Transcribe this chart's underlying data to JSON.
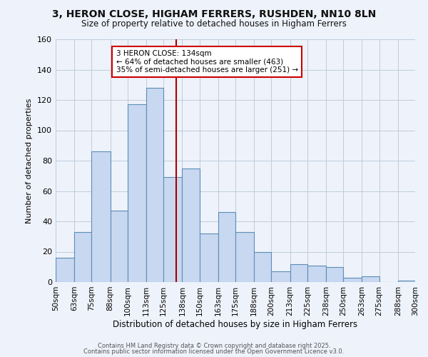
{
  "title": "3, HERON CLOSE, HIGHAM FERRERS, RUSHDEN, NN10 8LN",
  "subtitle": "Size of property relative to detached houses in Higham Ferrers",
  "xlabel": "Distribution of detached houses by size in Higham Ferrers",
  "ylabel": "Number of detached properties",
  "bar_color": "#c8d8f0",
  "bar_edge_color": "#5b8db8",
  "grid_color": "#b8c8d8",
  "background_color": "#eef2fa",
  "bin_labels": [
    "50sqm",
    "63sqm",
    "75sqm",
    "88sqm",
    "100sqm",
    "113sqm",
    "125sqm",
    "138sqm",
    "150sqm",
    "163sqm",
    "175sqm",
    "188sqm",
    "200sqm",
    "213sqm",
    "225sqm",
    "238sqm",
    "250sqm",
    "263sqm",
    "275sqm",
    "288sqm",
    "300sqm"
  ],
  "bin_edges": [
    50,
    63,
    75,
    88,
    100,
    113,
    125,
    138,
    150,
    163,
    175,
    188,
    200,
    213,
    225,
    238,
    250,
    263,
    275,
    288,
    300
  ],
  "bar_heights": [
    16,
    33,
    86,
    47,
    117,
    128,
    69,
    75,
    32,
    46,
    33,
    20,
    7,
    12,
    11,
    10,
    3,
    4,
    0,
    1
  ],
  "vline_x": 134,
  "vline_color": "#aa0000",
  "annotation_title": "3 HERON CLOSE: 134sqm",
  "annotation_line1": "← 64% of detached houses are smaller (463)",
  "annotation_line2": "35% of semi-detached houses are larger (251) →",
  "annotation_box_facecolor": "#ffffff",
  "annotation_box_edgecolor": "#cc0000",
  "ylim": [
    0,
    160
  ],
  "yticks": [
    0,
    20,
    40,
    60,
    80,
    100,
    120,
    140,
    160
  ],
  "footer1": "Contains HM Land Registry data © Crown copyright and database right 2025.",
  "footer2": "Contains public sector information licensed under the Open Government Licence v3.0."
}
